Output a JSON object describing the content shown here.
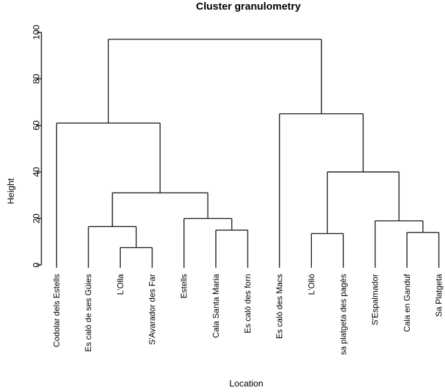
{
  "chart_data": {
    "type": "dendrogram",
    "title": "Cluster granulometry",
    "xlabel": "Location",
    "ylabel": "Height",
    "ylim": [
      0,
      100
    ],
    "yticks": [
      0,
      20,
      40,
      60,
      80,
      100
    ],
    "grid": false,
    "leaf_order": [
      "Codolar dels Estells",
      "Es caló de ses Gúies",
      "L'Olla",
      "S'Avarador des Far",
      "Estells",
      "Cala Santa Maria",
      "Es caló des forn",
      "Es caló des Macs",
      "L'Olló",
      "sa platgeta des pagès",
      "S'Espalmador",
      "Cala en Ganduf",
      "Sa Platgeta"
    ],
    "tree": {
      "height": 97,
      "children": [
        {
          "height": 61,
          "children": [
            {
              "leaf": "Codolar dels Estells"
            },
            {
              "height": 31,
              "children": [
                {
                  "height": 16.5,
                  "children": [
                    {
                      "leaf": "Es caló de ses Gúies"
                    },
                    {
                      "height": 7.5,
                      "children": [
                        {
                          "leaf": "L'Olla"
                        },
                        {
                          "leaf": "S'Avarador des Far"
                        }
                      ]
                    }
                  ]
                },
                {
                  "height": 20,
                  "children": [
                    {
                      "leaf": "Estells"
                    },
                    {
                      "height": 15,
                      "children": [
                        {
                          "leaf": "Cala Santa Maria"
                        },
                        {
                          "leaf": "Es caló des forn"
                        }
                      ]
                    }
                  ]
                }
              ]
            }
          ]
        },
        {
          "height": 65,
          "children": [
            {
              "leaf": "Es caló des Macs"
            },
            {
              "height": 40,
              "children": [
                {
                  "height": 13.5,
                  "children": [
                    {
                      "leaf": "L'Olló"
                    },
                    {
                      "leaf": "sa platgeta des pagès"
                    }
                  ]
                },
                {
                  "height": 19,
                  "children": [
                    {
                      "leaf": "S'Espalmador"
                    },
                    {
                      "height": 14,
                      "children": [
                        {
                          "leaf": "Cala en Ganduf"
                        },
                        {
                          "leaf": "Sa Platgeta"
                        }
                      ]
                    }
                  ]
                }
              ]
            }
          ]
        }
      ]
    }
  },
  "colors": {
    "line": "#1c1c1c",
    "text": "#000000",
    "background": "#ffffff"
  }
}
